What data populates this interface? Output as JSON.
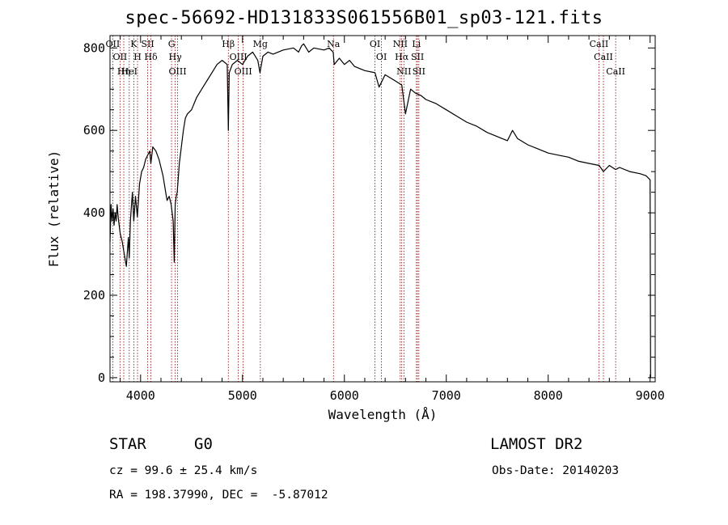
{
  "chart_data": {
    "type": "line",
    "title": "spec-56692-HD131833S061556B01_sp03-121.fits",
    "xlabel": "Wavelength (Å)",
    "ylabel": "Flux (relative)",
    "xlim": [
      3700,
      9050
    ],
    "ylim": [
      -10,
      830
    ],
    "xticks": [
      4000,
      5000,
      6000,
      7000,
      8000,
      9000
    ],
    "yticks": [
      0,
      200,
      400,
      600,
      800
    ],
    "grid": false,
    "line_color": "#000000",
    "marker_color": "#8b0000",
    "series": [
      {
        "x": [
          3700,
          3710,
          3720,
          3730,
          3740,
          3750,
          3760,
          3770,
          3780,
          3790,
          3800,
          3820,
          3840,
          3860,
          3880,
          3889,
          3900,
          3920,
          3933,
          3950,
          3968,
          3990,
          4010,
          4030,
          4050,
          4070,
          4090,
          4101,
          4120,
          4150,
          4180,
          4200,
          4220,
          4240,
          4260,
          4280,
          4300,
          4320,
          4330,
          4340,
          4350,
          4360,
          4380,
          4400,
          4420,
          4440,
          4460,
          4500,
          4550,
          4600,
          4650,
          4700,
          4750,
          4800,
          4850,
          4861,
          4870,
          4900,
          4950,
          5000,
          5050,
          5100,
          5150,
          5172,
          5200,
          5250,
          5300,
          5400,
          5500,
          5550,
          5580,
          5600,
          5650,
          5700,
          5800,
          5850,
          5890,
          5900,
          5950,
          6000,
          6050,
          6100,
          6200,
          6300,
          6340,
          6400,
          6500,
          6563,
          6600,
          6650,
          6700,
          6750,
          6800,
          6900,
          7000,
          7100,
          7200,
          7300,
          7400,
          7500,
          7600,
          7650,
          7700,
          7800,
          7900,
          8000,
          8100,
          8200,
          8300,
          8400,
          8500,
          8542,
          8600,
          8662,
          8700,
          8800,
          8900,
          8960,
          9000,
          9005
        ],
        "values": [
          330,
          420,
          380,
          410,
          370,
          400,
          380,
          420,
          390,
          370,
          350,
          330,
          300,
          270,
          340,
          290,
          380,
          450,
          380,
          440,
          390,
          470,
          500,
          510,
          530,
          540,
          550,
          520,
          560,
          550,
          530,
          510,
          490,
          460,
          430,
          440,
          420,
          380,
          280,
          420,
          440,
          450,
          520,
          560,
          600,
          630,
          640,
          650,
          680,
          700,
          720,
          740,
          760,
          770,
          760,
          600,
          740,
          760,
          770,
          760,
          780,
          790,
          770,
          740,
          780,
          790,
          785,
          795,
          800,
          790,
          805,
          810,
          790,
          800,
          795,
          800,
          790,
          760,
          775,
          760,
          770,
          755,
          745,
          740,
          705,
          735,
          720,
          710,
          640,
          700,
          690,
          685,
          675,
          665,
          650,
          635,
          620,
          610,
          595,
          585,
          575,
          600,
          580,
          565,
          555,
          545,
          540,
          535,
          525,
          520,
          515,
          500,
          515,
          505,
          510,
          500,
          495,
          490,
          480,
          0
        ]
      }
    ],
    "line_markers": [
      {
        "x": 3727,
        "label": "OII"
      },
      {
        "x": 3798,
        "label": "OII"
      },
      {
        "x": 3835,
        "label": "Hη"
      },
      {
        "x": 3889,
        "label": "HeI"
      },
      {
        "x": 3933,
        "label": "K"
      },
      {
        "x": 3970,
        "label": "H"
      },
      {
        "x": 4070,
        "label": "SII"
      },
      {
        "x": 4101,
        "label": "Hδ"
      },
      {
        "x": 4304,
        "label": "G"
      },
      {
        "x": 4340,
        "label": "Hγ"
      },
      {
        "x": 4363,
        "label": "OIII"
      },
      {
        "x": 4861,
        "label": "Hβ"
      },
      {
        "x": 4959,
        "label": "OIII"
      },
      {
        "x": 5007,
        "label": "OIII"
      },
      {
        "x": 5175,
        "label": "Mg"
      },
      {
        "x": 5893,
        "label": "Na"
      },
      {
        "x": 6300,
        "label": "OI"
      },
      {
        "x": 6364,
        "label": "OI"
      },
      {
        "x": 6548,
        "label": "NII"
      },
      {
        "x": 6563,
        "label": "Hα"
      },
      {
        "x": 6584,
        "label": "NII"
      },
      {
        "x": 6707,
        "label": "Li"
      },
      {
        "x": 6717,
        "label": "SII"
      },
      {
        "x": 6731,
        "label": "SII"
      },
      {
        "x": 8498,
        "label": "CaII"
      },
      {
        "x": 8542,
        "label": "CaII"
      },
      {
        "x": 8662,
        "label": "CaII"
      }
    ]
  },
  "info": {
    "class_label": "STAR",
    "subclass": "G0",
    "survey": "LAMOST DR2",
    "cz": "cz = 99.6 ± 25.4 km/s",
    "obs_date": "Obs-Date: 20140203",
    "coords": "RA = 198.37990, DEC =  -5.87012"
  }
}
